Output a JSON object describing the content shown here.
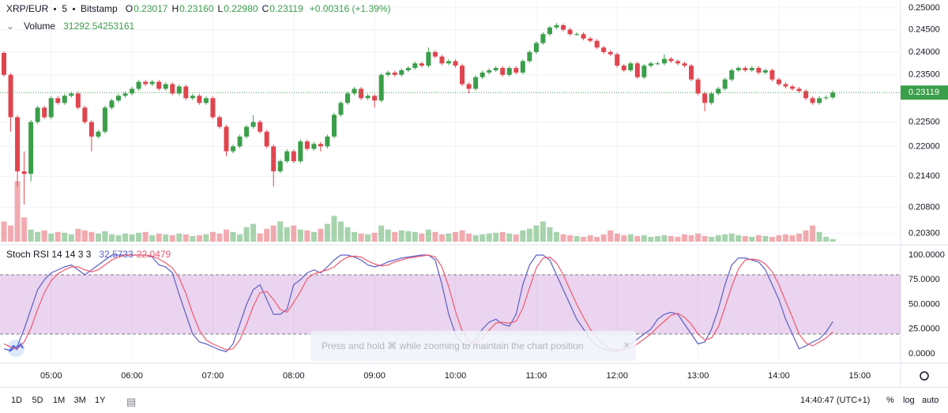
{
  "header": {
    "symbol": "XRP/EUR",
    "interval": "5",
    "exchange": "Bitstamp",
    "ohlc": [
      {
        "key": "O",
        "label": "0.23017"
      },
      {
        "key": "H",
        "label": "0.23160"
      },
      {
        "key": "L",
        "label": "0.22980"
      },
      {
        "key": "C",
        "label": "0.23119"
      }
    ],
    "change": "+0.00316 (+1.39%)"
  },
  "chart_data": [
    {
      "type": "candlestick",
      "up_color": "#3b9e4a",
      "down_color": "#e0454f",
      "log": true,
      "grid": true,
      "ylim": [
        0.2012,
        0.2518
      ],
      "yticks": [
        {
          "value": 0.25,
          "label": "0.25000"
        },
        {
          "value": 0.245,
          "label": "0.24500"
        },
        {
          "value": 0.24,
          "label": "0.24000"
        },
        {
          "value": 0.235,
          "label": "0.23500"
        },
        {
          "value": 0.225,
          "label": "0.22500"
        },
        {
          "value": 0.22,
          "label": "0.22000"
        },
        {
          "value": 0.214,
          "label": "0.21400"
        },
        {
          "value": 0.208,
          "label": "0.20800"
        },
        {
          "value": 0.203,
          "label": "0.20300"
        }
      ],
      "xticks": [
        "05:00",
        "06:00",
        "07:00",
        "08:00",
        "09:00",
        "10:00",
        "11:00",
        "12:00",
        "13:00",
        "14:00",
        "15:00"
      ],
      "x": [
        "04:25",
        "04:30",
        "04:35",
        "04:40",
        "04:45",
        "04:50",
        "04:55",
        "05:00",
        "05:05",
        "05:10",
        "05:15",
        "05:20",
        "05:25",
        "05:30",
        "05:35",
        "05:40",
        "05:45",
        "05:50",
        "05:55",
        "06:00",
        "06:05",
        "06:10",
        "06:15",
        "06:20",
        "06:25",
        "06:30",
        "06:35",
        "06:40",
        "06:45",
        "06:50",
        "06:55",
        "07:00",
        "07:05",
        "07:10",
        "07:15",
        "07:20",
        "07:25",
        "07:30",
        "07:35",
        "07:40",
        "07:45",
        "07:50",
        "07:55",
        "08:00",
        "08:05",
        "08:10",
        "08:15",
        "08:20",
        "08:25",
        "08:30",
        "08:35",
        "08:40",
        "08:45",
        "08:50",
        "08:55",
        "09:00",
        "09:05",
        "09:10",
        "09:15",
        "09:20",
        "09:25",
        "09:30",
        "09:35",
        "09:40",
        "09:45",
        "09:50",
        "09:55",
        "10:00",
        "10:05",
        "10:10",
        "10:15",
        "10:20",
        "10:25",
        "10:30",
        "10:35",
        "10:40",
        "10:45",
        "10:50",
        "10:55",
        "11:00",
        "11:05",
        "11:10",
        "11:15",
        "11:20",
        "11:25",
        "11:30",
        "11:35",
        "11:40",
        "11:45",
        "11:50",
        "11:55",
        "12:00",
        "12:05",
        "12:10",
        "12:15",
        "12:20",
        "12:25",
        "12:30",
        "12:35",
        "12:40",
        "12:45",
        "12:50",
        "12:55",
        "13:00",
        "13:05",
        "13:10",
        "13:15",
        "13:20",
        "13:25",
        "13:30",
        "13:35",
        "13:40",
        "13:45",
        "13:50",
        "13:55",
        "14:00",
        "14:05",
        "14:10",
        "14:15",
        "14:20",
        "14:25",
        "14:30",
        "14:35",
        "14:40"
      ],
      "open": [
        0.2398,
        0.235,
        0.226,
        0.215,
        0.2145,
        0.225,
        0.228,
        0.226,
        0.23,
        0.229,
        0.2305,
        0.231,
        0.228,
        0.225,
        0.222,
        0.223,
        0.228,
        0.2295,
        0.2305,
        0.231,
        0.232,
        0.2335,
        0.233,
        0.2335,
        0.232,
        0.233,
        0.231,
        0.2325,
        0.23,
        0.2305,
        0.229,
        0.23,
        0.226,
        0.224,
        0.219,
        0.22,
        0.222,
        0.224,
        0.225,
        0.223,
        0.22,
        0.215,
        0.217,
        0.219,
        0.217,
        0.221,
        0.2195,
        0.2205,
        0.22,
        0.222,
        0.2265,
        0.229,
        0.231,
        0.232,
        0.23,
        0.2305,
        0.2295,
        0.235,
        0.2355,
        0.235,
        0.236,
        0.2365,
        0.2375,
        0.237,
        0.24,
        0.239,
        0.2375,
        0.238,
        0.237,
        0.233,
        0.232,
        0.2345,
        0.2355,
        0.236,
        0.2365,
        0.235,
        0.2365,
        0.2355,
        0.238,
        0.24,
        0.242,
        0.244,
        0.2455,
        0.246,
        0.245,
        0.244,
        0.244,
        0.243,
        0.2425,
        0.241,
        0.24,
        0.2395,
        0.237,
        0.236,
        0.2375,
        0.2345,
        0.237,
        0.2375,
        0.2375,
        0.2385,
        0.238,
        0.2375,
        0.237,
        0.234,
        0.231,
        0.229,
        0.231,
        0.232,
        0.234,
        0.236,
        0.2365,
        0.236,
        0.2365,
        0.2355,
        0.236,
        0.234,
        0.233,
        0.2325,
        0.232,
        0.2315,
        0.23,
        0.229,
        0.23,
        0.23017
      ],
      "high": [
        0.2402,
        0.2354,
        0.2264,
        0.219,
        0.2254,
        0.2284,
        0.2284,
        0.2304,
        0.2304,
        0.2309,
        0.2314,
        0.2314,
        0.2284,
        0.2254,
        0.2234,
        0.2284,
        0.2299,
        0.2309,
        0.2314,
        0.2324,
        0.2339,
        0.2339,
        0.2339,
        0.2339,
        0.2334,
        0.2334,
        0.2329,
        0.2329,
        0.2309,
        0.2309,
        0.2304,
        0.2304,
        0.2264,
        0.2244,
        0.2204,
        0.2224,
        0.2244,
        0.2264,
        0.2254,
        0.2234,
        0.2204,
        0.2174,
        0.2194,
        0.2194,
        0.2214,
        0.2214,
        0.2209,
        0.2209,
        0.2224,
        0.2269,
        0.2294,
        0.2314,
        0.2324,
        0.2324,
        0.2309,
        0.2309,
        0.2354,
        0.2359,
        0.2359,
        0.2364,
        0.2369,
        0.2379,
        0.2379,
        0.241,
        0.2404,
        0.2394,
        0.2384,
        0.2384,
        0.2374,
        0.2334,
        0.2349,
        0.2359,
        0.2364,
        0.2369,
        0.2369,
        0.2369,
        0.2369,
        0.2384,
        0.2404,
        0.2424,
        0.2444,
        0.2459,
        0.2465,
        0.2464,
        0.2454,
        0.2444,
        0.2444,
        0.2434,
        0.2429,
        0.2414,
        0.2404,
        0.2399,
        0.2374,
        0.2379,
        0.2379,
        0.2374,
        0.2379,
        0.2379,
        0.2395,
        0.2389,
        0.2384,
        0.2379,
        0.2374,
        0.2344,
        0.2314,
        0.2314,
        0.2324,
        0.2344,
        0.2364,
        0.2369,
        0.2369,
        0.2369,
        0.2369,
        0.2364,
        0.2364,
        0.2344,
        0.2334,
        0.2329,
        0.2324,
        0.2319,
        0.2304,
        0.2304,
        0.2306,
        0.2316
      ],
      "low": [
        0.2346,
        0.223,
        0.212,
        0.2085,
        0.213,
        0.2246,
        0.2256,
        0.2256,
        0.2286,
        0.2286,
        0.2301,
        0.2276,
        0.2246,
        0.219,
        0.2216,
        0.2226,
        0.2276,
        0.2291,
        0.2301,
        0.2306,
        0.2316,
        0.2326,
        0.2326,
        0.2316,
        0.2316,
        0.2306,
        0.2306,
        0.2296,
        0.2296,
        0.2286,
        0.2286,
        0.2256,
        0.2236,
        0.218,
        0.2186,
        0.2196,
        0.2216,
        0.2236,
        0.2226,
        0.2196,
        0.212,
        0.2146,
        0.2166,
        0.2166,
        0.2166,
        0.2191,
        0.2191,
        0.219,
        0.2196,
        0.2216,
        0.2261,
        0.2286,
        0.2306,
        0.2296,
        0.2296,
        0.228,
        0.2291,
        0.2346,
        0.2346,
        0.2346,
        0.2356,
        0.2361,
        0.2366,
        0.2366,
        0.2386,
        0.2371,
        0.2371,
        0.2366,
        0.2326,
        0.231,
        0.2316,
        0.2341,
        0.2351,
        0.2356,
        0.2346,
        0.2346,
        0.2351,
        0.2351,
        0.2376,
        0.2396,
        0.2416,
        0.2436,
        0.2451,
        0.2446,
        0.2436,
        0.2436,
        0.2426,
        0.2421,
        0.2406,
        0.2396,
        0.2391,
        0.2366,
        0.2356,
        0.2356,
        0.2341,
        0.2341,
        0.2366,
        0.2371,
        0.2371,
        0.2376,
        0.2371,
        0.2366,
        0.2336,
        0.2306,
        0.2272,
        0.2286,
        0.2306,
        0.2316,
        0.2336,
        0.2356,
        0.2356,
        0.2356,
        0.2351,
        0.2351,
        0.2336,
        0.2326,
        0.2321,
        0.2316,
        0.2311,
        0.2296,
        0.2286,
        0.2286,
        0.2296,
        0.2298
      ],
      "close": [
        0.235,
        0.226,
        0.215,
        0.2145,
        0.225,
        0.228,
        0.226,
        0.23,
        0.229,
        0.2305,
        0.231,
        0.228,
        0.225,
        0.222,
        0.223,
        0.228,
        0.2295,
        0.2305,
        0.231,
        0.232,
        0.2335,
        0.233,
        0.2335,
        0.232,
        0.233,
        0.231,
        0.2325,
        0.23,
        0.2305,
        0.229,
        0.23,
        0.226,
        0.224,
        0.219,
        0.22,
        0.222,
        0.224,
        0.225,
        0.223,
        0.22,
        0.215,
        0.217,
        0.219,
        0.217,
        0.221,
        0.2195,
        0.2205,
        0.22,
        0.222,
        0.2265,
        0.229,
        0.231,
        0.232,
        0.23,
        0.2305,
        0.2295,
        0.235,
        0.2355,
        0.235,
        0.236,
        0.2365,
        0.2375,
        0.237,
        0.24,
        0.239,
        0.2375,
        0.238,
        0.237,
        0.233,
        0.232,
        0.2345,
        0.2355,
        0.236,
        0.2365,
        0.235,
        0.2365,
        0.2355,
        0.238,
        0.24,
        0.242,
        0.244,
        0.2455,
        0.246,
        0.245,
        0.244,
        0.244,
        0.243,
        0.2425,
        0.241,
        0.24,
        0.2395,
        0.237,
        0.236,
        0.2375,
        0.2345,
        0.237,
        0.2375,
        0.2375,
        0.2385,
        0.238,
        0.2375,
        0.237,
        0.234,
        0.231,
        0.229,
        0.231,
        0.232,
        0.234,
        0.236,
        0.2365,
        0.236,
        0.2365,
        0.2355,
        0.236,
        0.234,
        0.233,
        0.2325,
        0.232,
        0.2315,
        0.23,
        0.229,
        0.23,
        0.23017,
        0.23119
      ]
    },
    {
      "type": "bar",
      "title": "Volume",
      "ylim": [
        0,
        3000000
      ],
      "values": [
        250000,
        200000,
        750000,
        300000,
        150000,
        120000,
        140000,
        100000,
        120000,
        110000,
        90000,
        160000,
        140000,
        120000,
        100000,
        130000,
        90000,
        80000,
        100000,
        90000,
        110000,
        120000,
        80000,
        100000,
        90000,
        80000,
        100000,
        90000,
        70000,
        80000,
        90000,
        120000,
        100000,
        150000,
        120000,
        90000,
        180000,
        220000,
        100000,
        160000,
        200000,
        250000,
        180000,
        200000,
        150000,
        140000,
        120000,
        160000,
        220000,
        320000,
        250000,
        180000,
        120000,
        100000,
        90000,
        110000,
        200000,
        150000,
        120000,
        140000,
        130000,
        120000,
        100000,
        150000,
        120000,
        90000,
        100000,
        120000,
        140000,
        100000,
        80000,
        90000,
        100000,
        110000,
        120000,
        100000,
        90000,
        140000,
        160000,
        200000,
        250000,
        180000,
        120000,
        90000,
        80000,
        70000,
        60000,
        80000,
        60000,
        90000,
        140000,
        100000,
        80000,
        90000,
        70000,
        80000,
        60000,
        70000,
        80000,
        70000,
        60000,
        90000,
        80000,
        100000,
        70000,
        60000,
        80000,
        90000,
        100000,
        80000,
        70000,
        60000,
        80000,
        70000,
        60000,
        80000,
        90000,
        80000,
        100000,
        140000,
        200000,
        120000,
        60000,
        31292.54253161
      ]
    },
    {
      "type": "line",
      "title": "Stoch RSI 14 14 3 3",
      "ylim": [
        -9.6,
        108.8
      ],
      "band": [
        20,
        80
      ],
      "band_color": "#9c27b0",
      "yticks": [
        {
          "value": 100,
          "label": "100.0000"
        },
        {
          "value": 75,
          "label": "75.0000"
        },
        {
          "value": 50,
          "label": "50.0000"
        },
        {
          "value": 25,
          "label": "25.0000"
        },
        {
          "value": 0,
          "label": "0.0000"
        }
      ],
      "series": [
        {
          "color": "#5b5fc7",
          "values": [
            5,
            3,
            8,
            25,
            45,
            65,
            75,
            82,
            85,
            88,
            90,
            85,
            80,
            85,
            90,
            95,
            100,
            100,
            100,
            100,
            100,
            100,
            98,
            90,
            88,
            82,
            60,
            40,
            20,
            12,
            10,
            7,
            4,
            2,
            10,
            30,
            50,
            65,
            70,
            55,
            40,
            40,
            45,
            70,
            75,
            82,
            85,
            82,
            88,
            95,
            100,
            100,
            98,
            95,
            90,
            88,
            90,
            93,
            95,
            97,
            98,
            99,
            100,
            100,
            95,
            70,
            40,
            20,
            10,
            8,
            15,
            25,
            32,
            35,
            30,
            28,
            40,
            70,
            90,
            100,
            100,
            95,
            80,
            65,
            50,
            35,
            25,
            15,
            8,
            5,
            3,
            3,
            5,
            10,
            15,
            20,
            25,
            35,
            40,
            42,
            40,
            30,
            20,
            10,
            12,
            25,
            45,
            70,
            90,
            97,
            97,
            95,
            93,
            85,
            70,
            55,
            35,
            20,
            5,
            8,
            12,
            15,
            22,
            32.5733
          ]
        },
        {
          "color": "#ef5a6f",
          "values": [
            10,
            7,
            5,
            12,
            26,
            45,
            62,
            74,
            81,
            85,
            88,
            88,
            85,
            83,
            85,
            90,
            95,
            98,
            100,
            100,
            100,
            100,
            99,
            96,
            92,
            87,
            77,
            61,
            41,
            24,
            14,
            10,
            7,
            4,
            5,
            14,
            30,
            48,
            62,
            63,
            55,
            45,
            42,
            52,
            63,
            76,
            81,
            83,
            85,
            88,
            94,
            98,
            99,
            98,
            94,
            91,
            89,
            90,
            93,
            95,
            97,
            98,
            99,
            100,
            98,
            88,
            68,
            43,
            23,
            13,
            11,
            16,
            24,
            31,
            32,
            31,
            33,
            46,
            67,
            87,
            97,
            98,
            92,
            80,
            65,
            50,
            37,
            25,
            16,
            9,
            5,
            4,
            4,
            6,
            10,
            15,
            20,
            27,
            33,
            39,
            41,
            37,
            30,
            20,
            14,
            16,
            27,
            47,
            68,
            86,
            95,
            96,
            95,
            91,
            83,
            70,
            53,
            37,
            20,
            11,
            8,
            12,
            16,
            22.0479
          ]
        }
      ]
    }
  ],
  "ui": {
    "toast": "Press and hold ⌘ while zooming to maintain the chart position",
    "ranges": [
      "1D",
      "5D",
      "1M",
      "3M",
      "1Y"
    ],
    "clock": "14:40:47 (UTC+1)",
    "scale_options": [
      "%",
      "log",
      "auto"
    ]
  }
}
